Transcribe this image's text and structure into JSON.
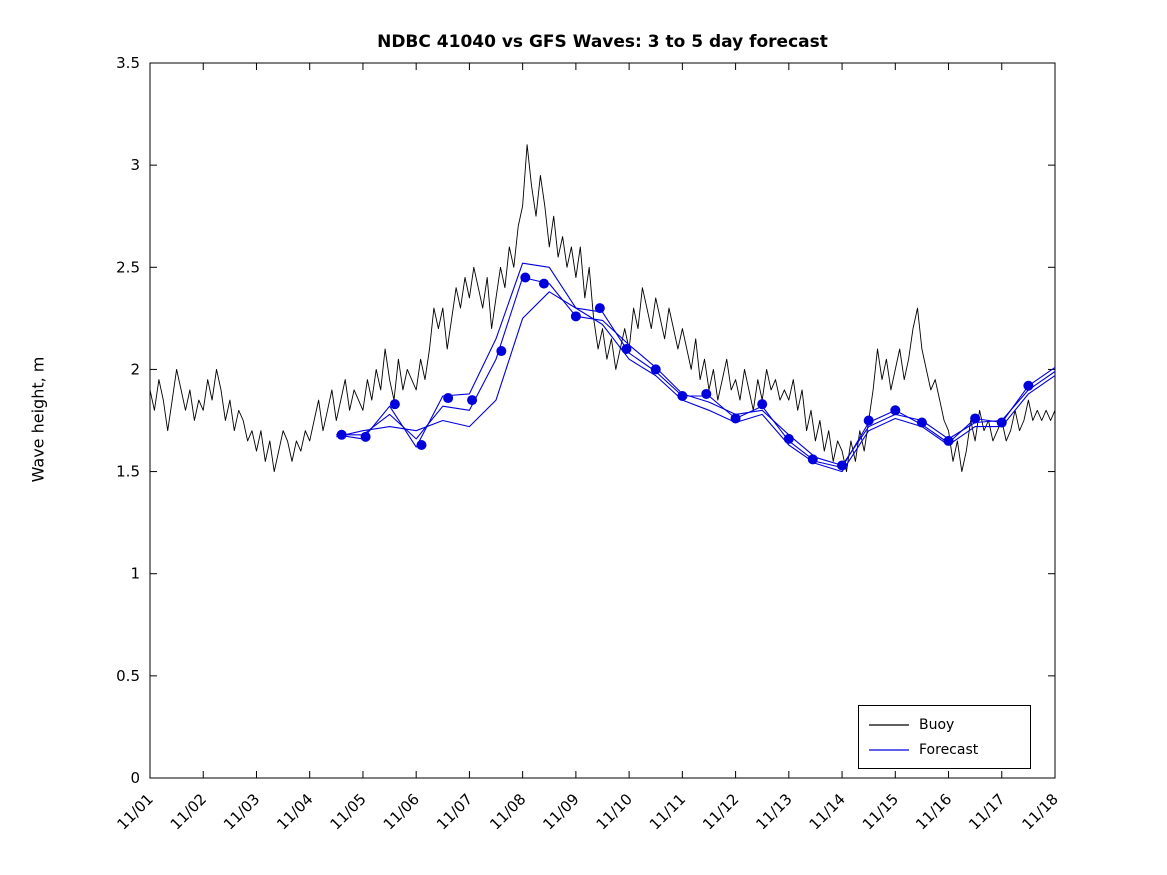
{
  "chart_data": {
    "type": "line",
    "title": "NDBC 41040 vs GFS Waves: 3 to 5 day forecast",
    "xlabel": "",
    "ylabel": "Wave height, m",
    "ylim": [
      0,
      3.5
    ],
    "xlim_days": [
      1,
      18
    ],
    "grid": false,
    "ytick_values": [
      0,
      0.5,
      1,
      1.5,
      2,
      2.5,
      3,
      3.5
    ],
    "ytick_labels": [
      "0",
      "0.5",
      "1",
      "1.5",
      "2",
      "2.5",
      "3",
      "3.5"
    ],
    "xtick_values": [
      1,
      2,
      3,
      4,
      5,
      6,
      7,
      8,
      9,
      10,
      11,
      12,
      13,
      14,
      15,
      16,
      17,
      18
    ],
    "xtick_labels": [
      "11/01",
      "11/02",
      "11/03",
      "11/04",
      "11/05",
      "11/06",
      "11/07",
      "11/08",
      "11/09",
      "11/10",
      "11/11",
      "11/12",
      "11/13",
      "11/14",
      "11/15",
      "11/16",
      "11/17",
      "11/18"
    ],
    "colors": {
      "buoy": "#000000",
      "forecast": "#0000DD",
      "axis": "#000000",
      "background": "#ffffff"
    },
    "legend": {
      "position": "south-east",
      "entries": [
        {
          "label": "Buoy",
          "color": "#000000"
        },
        {
          "label": "Forecast",
          "color": "#0000DD"
        }
      ]
    },
    "buoy": {
      "x_start_day": 1,
      "x_step_days": 0.0833333,
      "values": [
        1.9,
        1.8,
        1.95,
        1.85,
        1.7,
        1.85,
        2.0,
        1.9,
        1.8,
        1.9,
        1.75,
        1.85,
        1.8,
        1.95,
        1.85,
        2.0,
        1.9,
        1.75,
        1.85,
        1.7,
        1.8,
        1.75,
        1.65,
        1.7,
        1.6,
        1.7,
        1.55,
        1.65,
        1.5,
        1.6,
        1.7,
        1.65,
        1.55,
        1.65,
        1.6,
        1.7,
        1.65,
        1.75,
        1.85,
        1.7,
        1.8,
        1.9,
        1.75,
        1.85,
        1.95,
        1.8,
        1.9,
        1.85,
        1.8,
        1.95,
        1.85,
        2.0,
        1.9,
        2.1,
        1.95,
        1.85,
        2.05,
        1.9,
        2.0,
        1.95,
        1.9,
        2.05,
        1.95,
        2.1,
        2.3,
        2.2,
        2.3,
        2.1,
        2.25,
        2.4,
        2.3,
        2.45,
        2.35,
        2.5,
        2.4,
        2.3,
        2.45,
        2.2,
        2.35,
        2.5,
        2.4,
        2.6,
        2.5,
        2.7,
        2.8,
        3.1,
        2.9,
        2.75,
        2.95,
        2.8,
        2.6,
        2.75,
        2.55,
        2.65,
        2.5,
        2.6,
        2.45,
        2.6,
        2.35,
        2.5,
        2.25,
        2.1,
        2.2,
        2.05,
        2.15,
        2.0,
        2.1,
        2.2,
        2.1,
        2.3,
        2.2,
        2.4,
        2.3,
        2.2,
        2.35,
        2.25,
        2.15,
        2.3,
        2.2,
        2.1,
        2.2,
        2.1,
        2.0,
        2.15,
        1.95,
        2.05,
        1.9,
        2.0,
        1.85,
        1.95,
        2.05,
        1.9,
        1.95,
        1.85,
        2.0,
        1.9,
        1.8,
        1.95,
        1.85,
        2.0,
        1.9,
        1.95,
        1.85,
        1.9,
        1.85,
        1.95,
        1.8,
        1.9,
        1.7,
        1.8,
        1.65,
        1.75,
        1.6,
        1.7,
        1.55,
        1.65,
        1.6,
        1.5,
        1.65,
        1.55,
        1.7,
        1.6,
        1.75,
        1.9,
        2.1,
        1.95,
        2.05,
        1.9,
        2.0,
        2.1,
        1.95,
        2.05,
        2.2,
        2.3,
        2.1,
        2.0,
        1.9,
        1.95,
        1.85,
        1.75,
        1.7,
        1.55,
        1.65,
        1.5,
        1.6,
        1.75,
        1.65,
        1.8,
        1.7,
        1.75,
        1.65,
        1.7,
        1.75,
        1.65,
        1.7,
        1.8,
        1.7,
        1.75,
        1.85,
        1.75,
        1.8,
        1.75,
        1.8,
        1.75,
        1.8
      ]
    },
    "forecast_lines": [
      {
        "name": "forecast-3day",
        "x_start_day": 4.5,
        "x_step_days": 0.5,
        "values": [
          1.68,
          1.66,
          1.82,
          1.62,
          1.87,
          1.88,
          2.15,
          2.52,
          2.5,
          2.3,
          2.28,
          2.08,
          1.99,
          1.87,
          1.87,
          1.76,
          1.82,
          1.65,
          1.55,
          1.52,
          1.74,
          1.8,
          1.73,
          1.64,
          1.76,
          1.74,
          1.92,
          2.01
        ]
      },
      {
        "name": "forecast-4day",
        "x_start_day": 4.5,
        "x_step_days": 0.5,
        "values": [
          1.68,
          1.68,
          1.78,
          1.66,
          1.82,
          1.8,
          2.05,
          2.45,
          2.42,
          2.26,
          2.24,
          2.12,
          2.01,
          1.88,
          1.84,
          1.78,
          1.8,
          1.68,
          1.57,
          1.53,
          1.72,
          1.78,
          1.75,
          1.66,
          1.74,
          1.75,
          1.9,
          1.99
        ]
      },
      {
        "name": "forecast-5day",
        "x_start_day": 4.5,
        "x_step_days": 0.5,
        "values": [
          1.67,
          1.7,
          1.72,
          1.7,
          1.75,
          1.72,
          1.85,
          2.25,
          2.38,
          2.3,
          2.22,
          2.05,
          1.97,
          1.85,
          1.8,
          1.74,
          1.78,
          1.63,
          1.54,
          1.5,
          1.7,
          1.76,
          1.72,
          1.63,
          1.72,
          1.72,
          1.88,
          1.97
        ]
      }
    ],
    "forecast_markers": {
      "x": [
        4.6,
        5.05,
        5.6,
        6.1,
        6.6,
        7.05,
        7.6,
        8.05,
        8.4,
        9.0,
        9.45,
        9.95,
        10.5,
        11.0,
        11.45,
        12.0,
        12.5,
        13.0,
        13.45,
        14.0,
        14.5,
        15.0,
        15.5,
        16.0,
        16.5,
        17.0,
        17.5
      ],
      "y": [
        1.68,
        1.67,
        1.83,
        1.63,
        1.86,
        1.85,
        2.09,
        2.45,
        2.42,
        2.26,
        2.3,
        2.1,
        2.0,
        1.87,
        1.88,
        1.76,
        1.83,
        1.66,
        1.56,
        1.53,
        1.75,
        1.8,
        1.74,
        1.65,
        1.76,
        1.74,
        1.92
      ]
    }
  }
}
